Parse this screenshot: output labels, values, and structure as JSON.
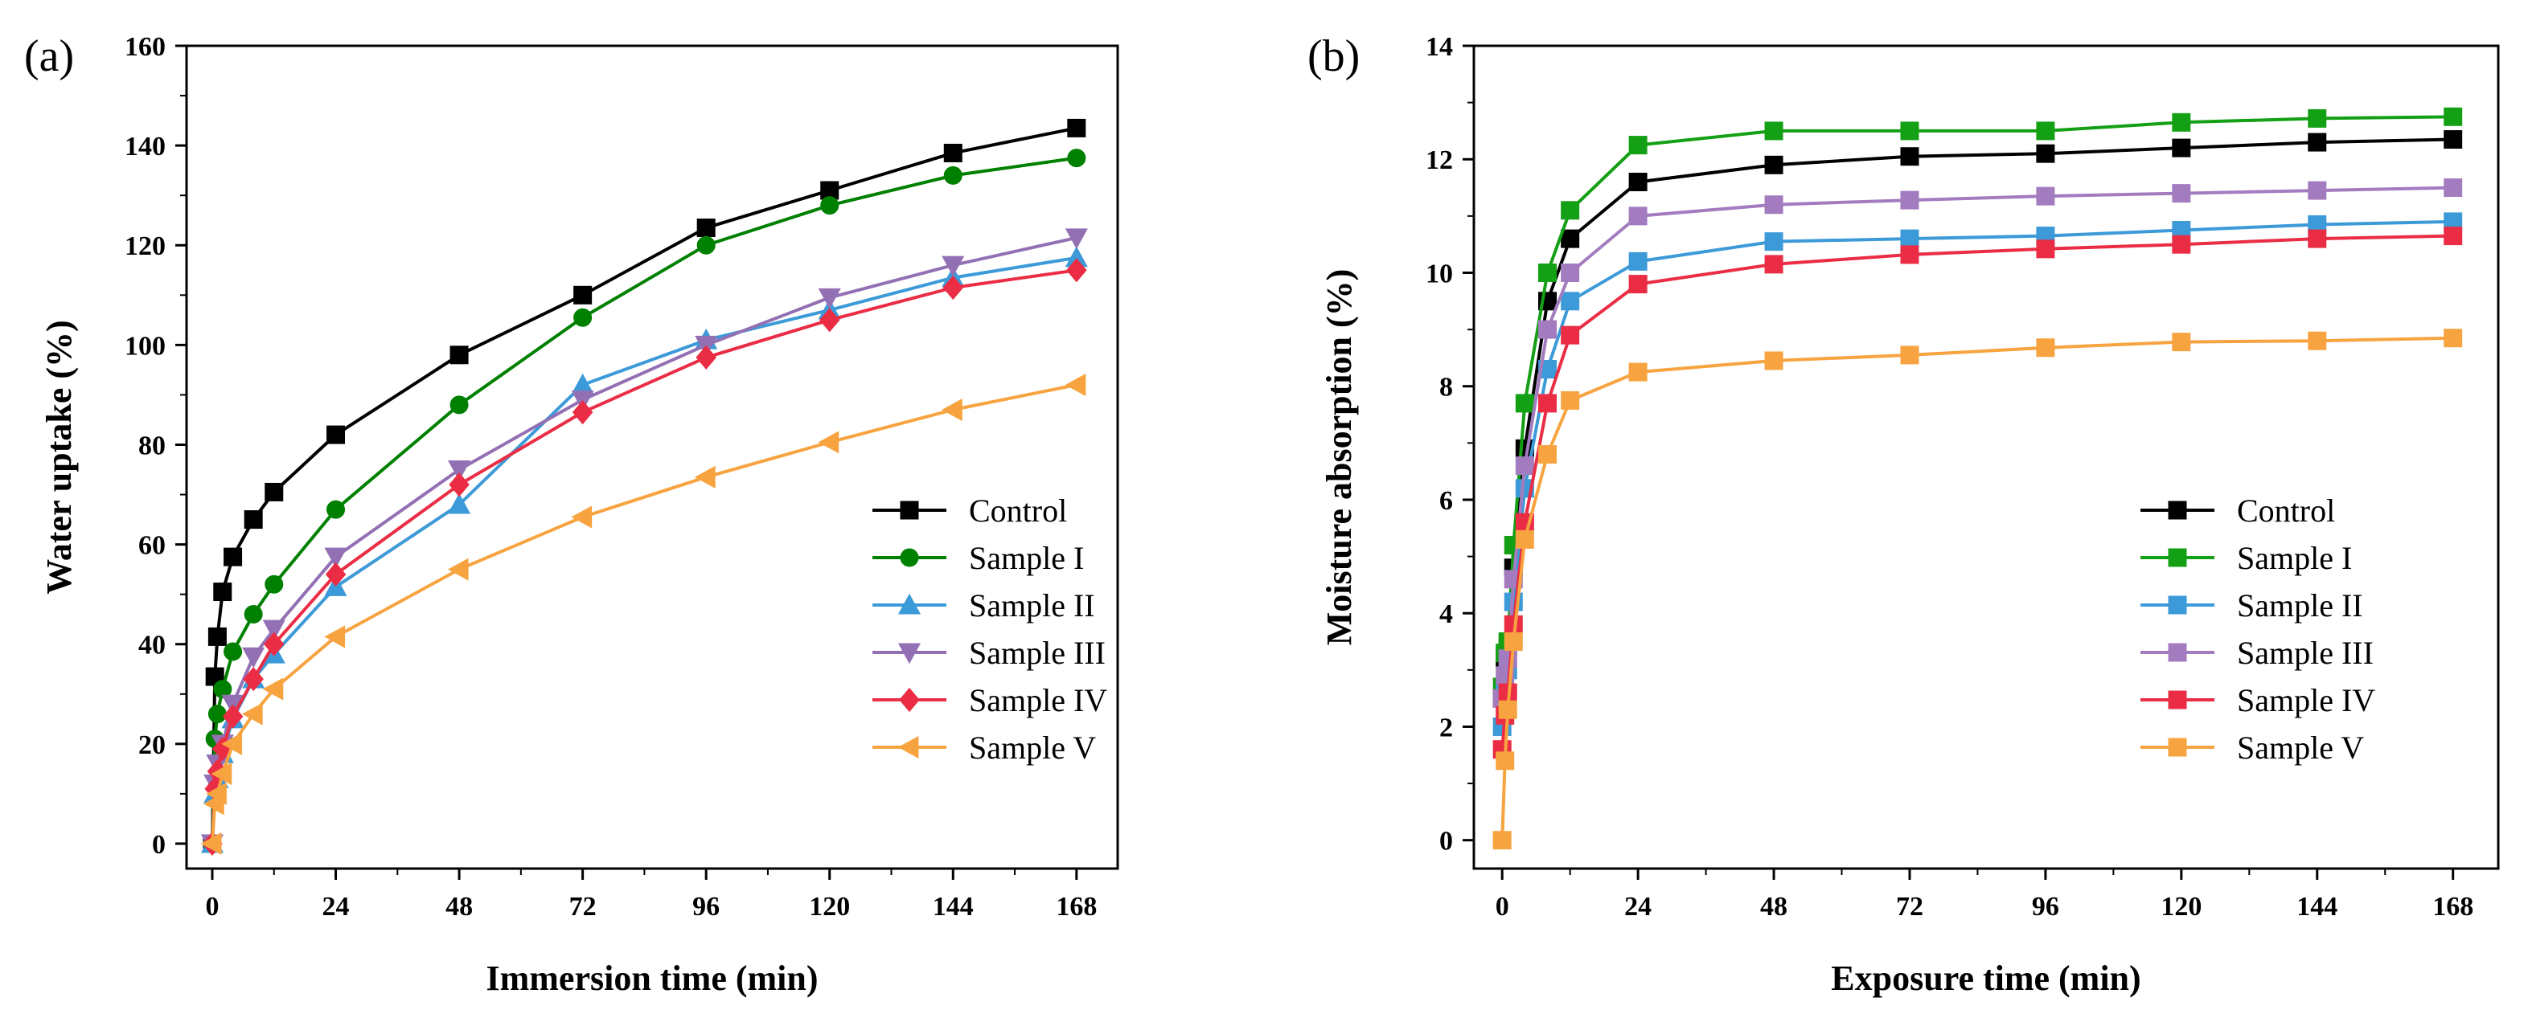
{
  "chart_data": [
    {
      "type": "line",
      "panel_label": "(a)",
      "title": "",
      "xlabel": "Immersion time (min)",
      "ylabel": "Water uptake (%)",
      "xlim": [
        -5,
        176
      ],
      "ylim": [
        -5,
        160
      ],
      "xticks": [
        0,
        24,
        48,
        72,
        96,
        120,
        144,
        168
      ],
      "yticks": [
        0,
        20,
        40,
        60,
        80,
        100,
        120,
        140,
        160
      ],
      "legend_position": "right-middle",
      "series": [
        {
          "name": "Control",
          "color": "#000000",
          "marker": "square",
          "x": [
            0,
            0.5,
            1,
            2,
            4,
            8,
            12,
            24,
            48,
            72,
            96,
            120,
            144,
            168
          ],
          "y": [
            0,
            33.5,
            41.5,
            50.5,
            57.5,
            65,
            70.5,
            82,
            98,
            110,
            123.5,
            131,
            138.5,
            143.5
          ]
        },
        {
          "name": "Sample I",
          "color": "#008000",
          "marker": "circle",
          "x": [
            0,
            0.5,
            1,
            2,
            4,
            8,
            12,
            24,
            48,
            72,
            96,
            120,
            144,
            168
          ],
          "y": [
            0,
            21,
            26,
            31,
            38.5,
            46,
            52,
            67,
            88,
            105.5,
            120,
            128,
            134,
            137.5
          ]
        },
        {
          "name": "Sample II",
          "color": "#3c9ad8",
          "marker": "triangle-up",
          "x": [
            0,
            0.5,
            1,
            2,
            4,
            8,
            12,
            24,
            48,
            72,
            96,
            120,
            144,
            168
          ],
          "y": [
            0,
            10,
            13,
            18,
            25,
            33,
            38,
            51.5,
            68,
            92,
            101,
            107,
            113.5,
            117.5
          ]
        },
        {
          "name": "Sample III",
          "color": "#9370b4",
          "marker": "triangle-down",
          "x": [
            0,
            0.5,
            1,
            2,
            4,
            8,
            12,
            24,
            48,
            72,
            96,
            120,
            144,
            168
          ],
          "y": [
            0,
            12,
            16,
            20,
            28,
            37.5,
            43,
            57.5,
            75,
            89,
            100,
            109.5,
            116,
            121.5
          ]
        },
        {
          "name": "Sample IV",
          "color": "#ea2d44",
          "marker": "diamond",
          "x": [
            0,
            0.5,
            1,
            2,
            4,
            8,
            12,
            24,
            48,
            72,
            96,
            120,
            144,
            168
          ],
          "y": [
            0,
            11,
            14.5,
            19,
            25.5,
            33,
            40,
            54,
            72,
            86.5,
            97.5,
            105,
            111.5,
            115
          ]
        },
        {
          "name": "Sample V",
          "color": "#f7a440",
          "marker": "triangle-left",
          "x": [
            0,
            0.5,
            1,
            2,
            4,
            8,
            12,
            24,
            48,
            72,
            96,
            120,
            144,
            168
          ],
          "y": [
            0,
            8,
            10,
            14,
            20,
            26,
            31,
            41.5,
            55,
            65.5,
            73.5,
            80.5,
            87,
            92
          ]
        }
      ]
    },
    {
      "type": "line",
      "panel_label": "(b)",
      "title": "",
      "xlabel": "Exposure time (min)",
      "ylabel": "Moisture absorption (%)",
      "xlim": [
        -5,
        176
      ],
      "ylim": [
        -0.5,
        14
      ],
      "xticks": [
        0,
        24,
        48,
        72,
        96,
        120,
        144,
        168
      ],
      "yticks": [
        0,
        2,
        4,
        6,
        8,
        10,
        12,
        14
      ],
      "legend_position": "right-middle",
      "series": [
        {
          "name": "Control",
          "color": "#000000",
          "marker": "square",
          "x": [
            0,
            0.5,
            1,
            2,
            4,
            8,
            12,
            24,
            48,
            72,
            96,
            120,
            144,
            168
          ],
          "y": [
            2.5,
            3.2,
            3.4,
            4.8,
            6.9,
            9.5,
            10.6,
            11.6,
            11.9,
            12.05,
            12.1,
            12.2,
            12.3,
            12.35
          ]
        },
        {
          "name": "Sample I",
          "color": "#14a014",
          "marker": "square",
          "x": [
            0,
            0.5,
            1,
            2,
            4,
            8,
            12,
            24,
            48,
            72,
            96,
            120,
            144,
            168
          ],
          "y": [
            2.7,
            3.3,
            3.5,
            5.2,
            7.7,
            10.0,
            11.1,
            12.25,
            12.5,
            12.5,
            12.5,
            12.65,
            12.72,
            12.75
          ]
        },
        {
          "name": "Sample II",
          "color": "#3c9ad8",
          "marker": "square",
          "x": [
            0,
            0.5,
            1,
            2,
            4,
            8,
            12,
            24,
            48,
            72,
            96,
            120,
            144,
            168
          ],
          "y": [
            2.0,
            2.6,
            3.0,
            4.2,
            6.2,
            8.3,
            9.5,
            10.2,
            10.55,
            10.6,
            10.65,
            10.75,
            10.85,
            10.9
          ]
        },
        {
          "name": "Sample III",
          "color": "#a37cc0",
          "marker": "square",
          "x": [
            0,
            0.5,
            1,
            2,
            4,
            8,
            12,
            24,
            48,
            72,
            96,
            120,
            144,
            168
          ],
          "y": [
            2.5,
            2.9,
            3.2,
            4.6,
            6.6,
            9.0,
            10.0,
            11.0,
            11.2,
            11.28,
            11.35,
            11.4,
            11.45,
            11.5
          ]
        },
        {
          "name": "Sample IV",
          "color": "#ea2d44",
          "marker": "square",
          "x": [
            0,
            0.5,
            1,
            2,
            4,
            8,
            12,
            24,
            48,
            72,
            96,
            120,
            144,
            168
          ],
          "y": [
            1.6,
            2.2,
            2.6,
            3.8,
            5.6,
            7.7,
            8.9,
            9.8,
            10.15,
            10.32,
            10.42,
            10.5,
            10.6,
            10.65
          ]
        },
        {
          "name": "Sample V",
          "color": "#f7a440",
          "marker": "square",
          "x": [
            0,
            0.5,
            1,
            2,
            4,
            8,
            12,
            24,
            48,
            72,
            96,
            120,
            144,
            168
          ],
          "y": [
            0,
            1.4,
            2.3,
            3.5,
            5.3,
            6.8,
            7.75,
            8.25,
            8.45,
            8.55,
            8.68,
            8.78,
            8.8,
            8.85
          ]
        }
      ]
    }
  ]
}
